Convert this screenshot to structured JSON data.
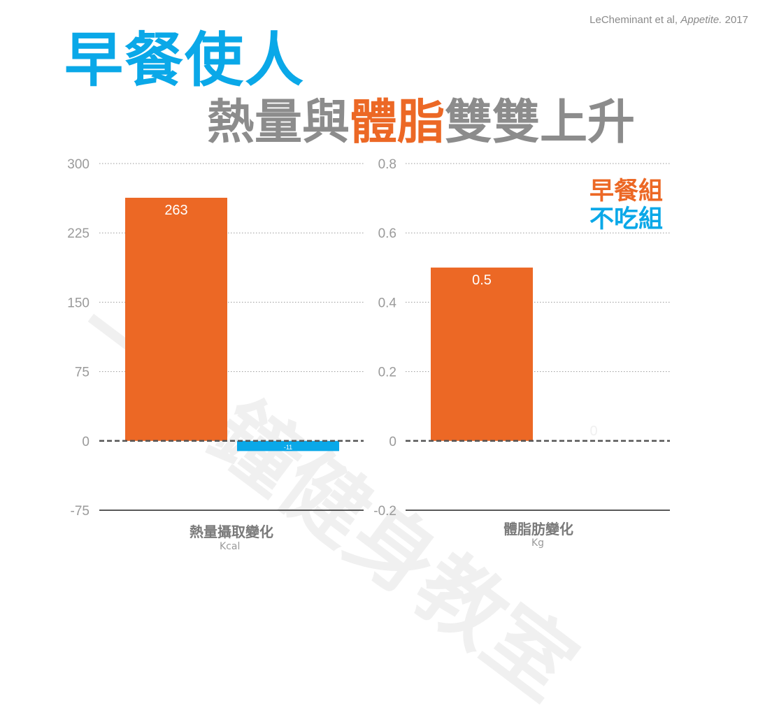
{
  "citation": {
    "authors": "LeCheminant  et al,",
    "journal": "Appetite.",
    "year": "2017"
  },
  "title": {
    "main": "早餐使人",
    "sub_pre": "熱量與",
    "sub_hl": "體脂",
    "sub_post": "雙雙上升"
  },
  "watermark": "一分鐘健身教室",
  "legend": {
    "breakfast": "早餐組",
    "no_breakfast": "不吃組"
  },
  "colors": {
    "breakfast": "#ec6825",
    "no_breakfast": "#0aa8e8",
    "title_blue": "#0aa8e8",
    "title_gray": "#8c8c8c"
  },
  "chart_data": [
    {
      "type": "bar",
      "xlabel": "熱量攝取變化",
      "unit": "Kcal",
      "ylim": [
        -75,
        300
      ],
      "yticks": [
        "300",
        "225",
        "150",
        "75",
        "0",
        "-75"
      ],
      "yticks_values": [
        300,
        225,
        150,
        75,
        0,
        -75
      ],
      "grid": true,
      "series": [
        {
          "name": "早餐組",
          "values": [
            263
          ],
          "labels": [
            "263"
          ]
        },
        {
          "name": "不吃組",
          "values": [
            -11
          ],
          "labels": [
            "-11"
          ]
        }
      ]
    },
    {
      "type": "bar",
      "xlabel": "體脂肪變化",
      "unit": "Kg",
      "ylim": [
        -0.2,
        0.8
      ],
      "yticks": [
        "0.8",
        "0.6",
        "0.4",
        "0.2",
        "0",
        "-0.2"
      ],
      "yticks_values": [
        0.8,
        0.6,
        0.4,
        0.2,
        0,
        -0.2
      ],
      "grid": true,
      "series": [
        {
          "name": "早餐組",
          "values": [
            0.5
          ],
          "labels": [
            "0.5"
          ]
        },
        {
          "name": "不吃組",
          "values": [
            0
          ],
          "labels": [
            "0"
          ]
        }
      ]
    }
  ]
}
